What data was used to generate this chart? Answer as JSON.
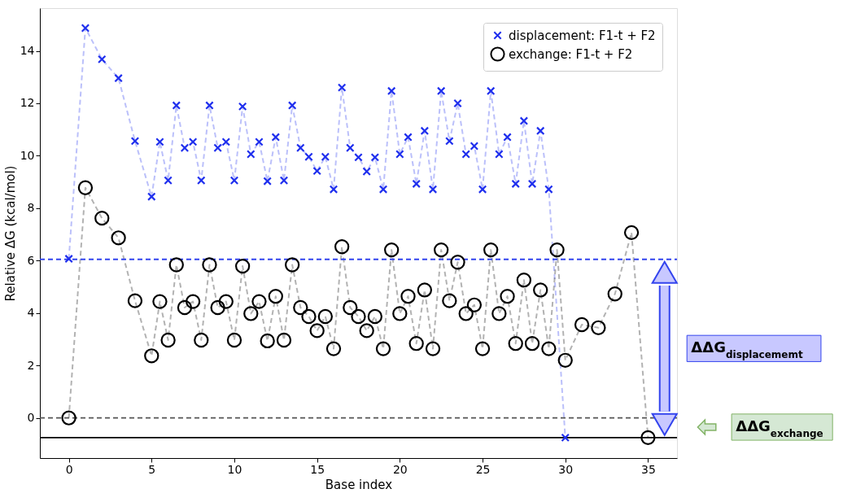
{
  "chart_data": {
    "type": "line",
    "xlabel": "Base index",
    "ylabel": "Relative ΔG (kcal/mol)",
    "xlim": [
      -1.75,
      36.75
    ],
    "ylim": [
      -1.53,
      15.63
    ],
    "xticks": [
      0,
      5,
      10,
      15,
      20,
      25,
      30,
      35
    ],
    "yticks": [
      0,
      2,
      4,
      6,
      8,
      10,
      12,
      14
    ],
    "grid": false,
    "legend": "top right",
    "line_style": "dashed",
    "series": [
      {
        "name": "displacement: F1-t + F2",
        "color": "#1f2fee",
        "marker": "cross",
        "x": [
          0,
          1,
          2,
          3,
          4,
          5,
          5.5,
          6,
          6.5,
          7,
          7.5,
          8,
          8.5,
          9,
          9.5,
          10,
          10.5,
          11,
          11.5,
          12,
          12.5,
          13,
          13.5,
          14,
          14.5,
          15,
          15.5,
          16,
          16.5,
          17,
          17.5,
          18,
          18.5,
          19,
          19.5,
          20,
          20.5,
          21,
          21.5,
          22,
          22.5,
          23,
          23.5,
          24,
          24.5,
          25,
          25.5,
          26,
          26.5,
          27,
          27.5,
          28,
          28.5,
          29,
          30
        ],
        "values": [
          6.07,
          14.87,
          13.68,
          12.96,
          10.56,
          8.44,
          10.53,
          9.06,
          11.92,
          10.3,
          10.53,
          9.06,
          11.92,
          10.3,
          10.53,
          9.06,
          11.88,
          10.06,
          10.53,
          9.03,
          10.71,
          9.06,
          11.92,
          10.3,
          9.96,
          9.42,
          9.96,
          8.72,
          12.6,
          10.3,
          9.94,
          9.4,
          9.94,
          8.72,
          12.47,
          10.06,
          10.71,
          8.93,
          10.95,
          8.72,
          12.47,
          10.56,
          12.0,
          10.06,
          10.37,
          8.72,
          12.47,
          10.06,
          10.71,
          8.93,
          11.33,
          8.93,
          10.95,
          8.72,
          -0.75
        ]
      },
      {
        "name": "exchange: F1-t + F2",
        "color": "#000000",
        "marker": "circle",
        "x": [
          0,
          1,
          2,
          3,
          4,
          5,
          5.5,
          6,
          6.5,
          7,
          7.5,
          8,
          8.5,
          9,
          9.5,
          10,
          10.5,
          11,
          11.5,
          12,
          12.5,
          13,
          13.5,
          14,
          14.5,
          15,
          15.5,
          16,
          16.5,
          17,
          17.5,
          18,
          18.5,
          19,
          19.5,
          20,
          20.5,
          21,
          21.5,
          22,
          22.5,
          23,
          23.5,
          24,
          24.5,
          25,
          25.5,
          26,
          26.5,
          27,
          27.5,
          28,
          28.5,
          29,
          29.5,
          30,
          31,
          32,
          33,
          34,
          35
        ],
        "values": [
          0,
          8.78,
          7.62,
          6.87,
          4.47,
          2.37,
          4.44,
          2.97,
          5.84,
          4.21,
          4.44,
          2.97,
          5.84,
          4.21,
          4.44,
          2.97,
          5.79,
          3.98,
          4.44,
          2.94,
          4.64,
          2.97,
          5.84,
          4.21,
          3.87,
          3.33,
          3.87,
          2.64,
          6.53,
          4.21,
          3.87,
          3.33,
          3.87,
          2.64,
          6.41,
          3.98,
          4.64,
          2.84,
          4.88,
          2.64,
          6.41,
          4.47,
          5.94,
          3.98,
          4.31,
          2.64,
          6.41,
          3.98,
          4.64,
          2.84,
          5.26,
          2.84,
          4.88,
          2.64,
          6.41,
          2.2,
          3.56,
          3.44,
          4.73,
          7.07,
          -0.75
        ]
      }
    ],
    "ref_lines": [
      {
        "axis": "y",
        "value": 6.05,
        "color": "#3344ee",
        "line_style": "dashed"
      },
      {
        "axis": "y",
        "value": 0,
        "color": "#555555",
        "line_style": "dashed"
      },
      {
        "axis": "y",
        "value": -0.75,
        "color": "#000000"
      }
    ],
    "annotations": [
      "ΔΔG$_{displacememt}$",
      "ΔΔG$_{exchange}$"
    ]
  }
}
